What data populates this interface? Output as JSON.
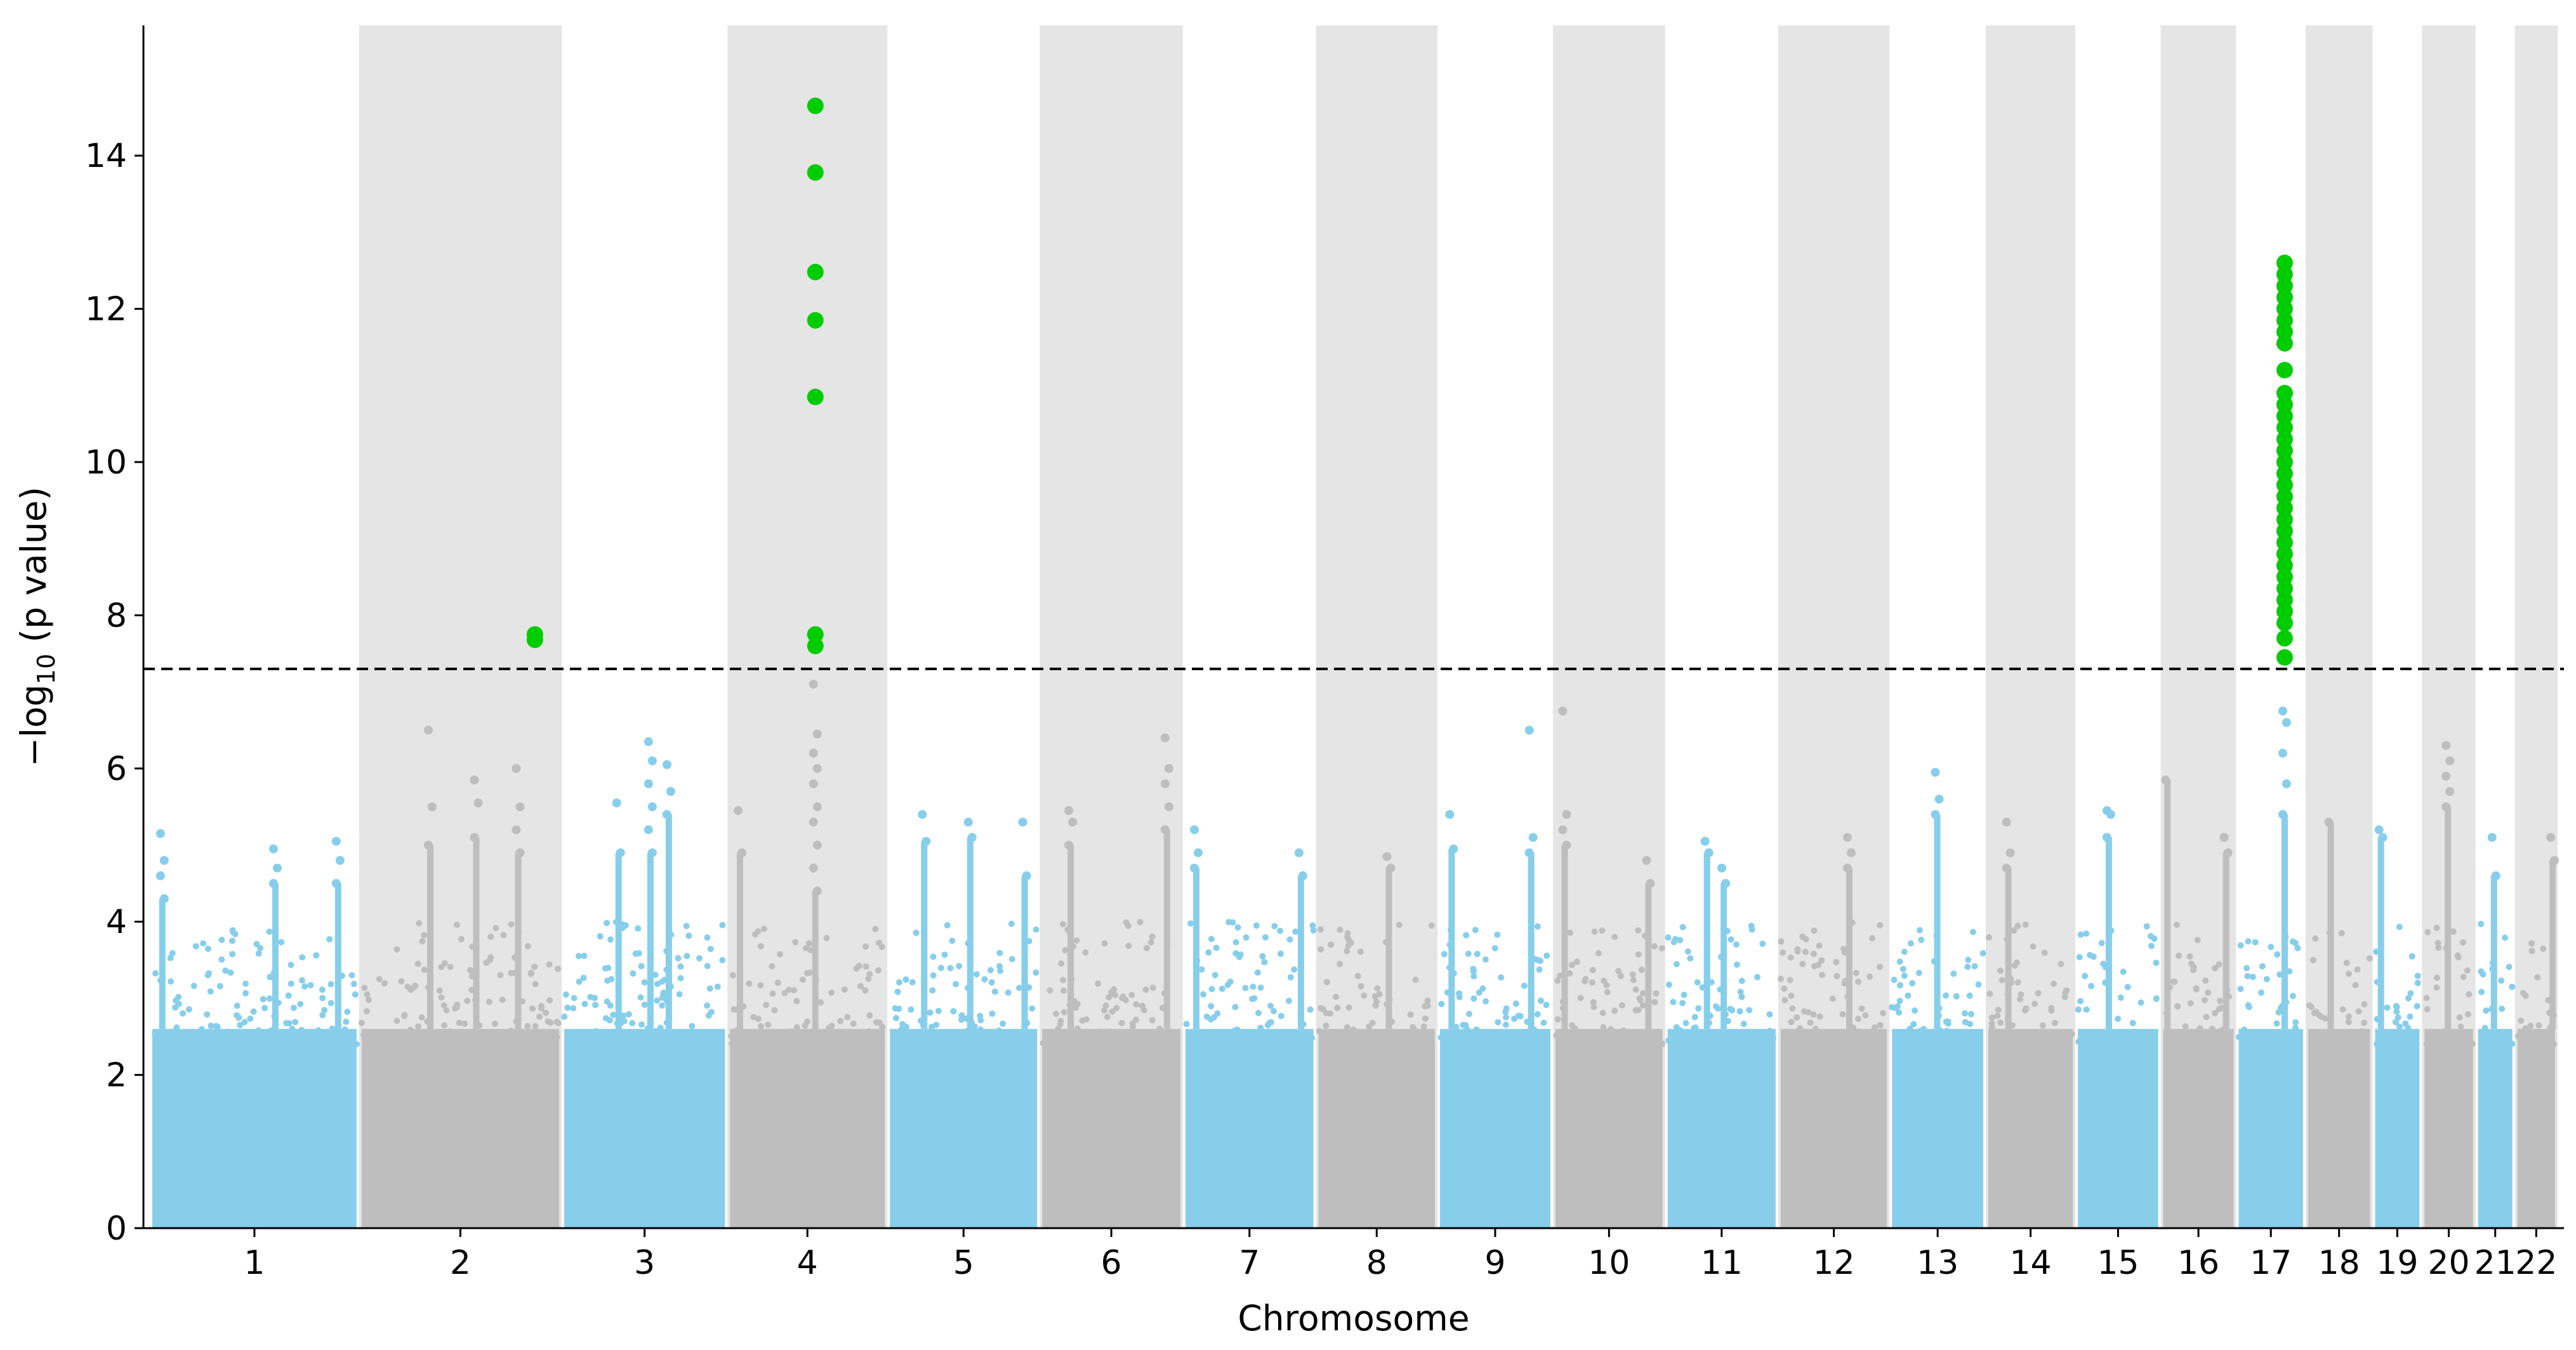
{
  "chart_data": {
    "type": "scatter",
    "title": "",
    "xlabel": "Chromosome",
    "ylabel_prefix": "−log",
    "ylabel_sub": "10",
    "ylabel_suffix": " (p value)",
    "ylim": [
      0,
      15.7
    ],
    "yticks": [
      0,
      2,
      4,
      6,
      8,
      10,
      12,
      14
    ],
    "ytick_labels": [
      "0",
      "2",
      "4",
      "6",
      "8",
      "10",
      "12",
      "14"
    ],
    "significance_threshold": 7.3,
    "colors": {
      "odd_chromosomes": "#87ceeb",
      "even_chromosomes": "#bebebe",
      "significant": "#00cc00",
      "shaded_band": "#e5e5e5",
      "threshold_line": "#000000"
    },
    "chromosomes": [
      {
        "label": "1",
        "start": 0,
        "end": 250
      },
      {
        "label": "2",
        "start": 250,
        "end": 492
      },
      {
        "label": "3",
        "start": 492,
        "end": 690
      },
      {
        "label": "4",
        "start": 690,
        "end": 881
      },
      {
        "label": "5",
        "start": 881,
        "end": 1063
      },
      {
        "label": "6",
        "start": 1063,
        "end": 1234
      },
      {
        "label": "7",
        "start": 1234,
        "end": 1393
      },
      {
        "label": "8",
        "start": 1393,
        "end": 1538
      },
      {
        "label": "9",
        "start": 1538,
        "end": 1676
      },
      {
        "label": "10",
        "start": 1676,
        "end": 1810
      },
      {
        "label": "11",
        "start": 1810,
        "end": 1945
      },
      {
        "label": "12",
        "start": 1945,
        "end": 2078
      },
      {
        "label": "13",
        "start": 2078,
        "end": 2193
      },
      {
        "label": "14",
        "start": 2193,
        "end": 2300
      },
      {
        "label": "15",
        "start": 2300,
        "end": 2402
      },
      {
        "label": "16",
        "start": 2402,
        "end": 2492
      },
      {
        "label": "17",
        "start": 2492,
        "end": 2575
      },
      {
        "label": "18",
        "start": 2575,
        "end": 2655
      },
      {
        "label": "19",
        "start": 2655,
        "end": 2714
      },
      {
        "label": "20",
        "start": 2714,
        "end": 2778
      },
      {
        "label": "21",
        "start": 2778,
        "end": 2825
      },
      {
        "label": "22",
        "start": 2825,
        "end": 2876
      }
    ],
    "peaks": [
      {
        "chromosome": "1",
        "x": 15,
        "values": [
          5.15,
          4.8,
          4.6,
          4.3
        ]
      },
      {
        "chromosome": "1",
        "x": 150,
        "values": [
          4.95,
          4.7,
          4.5
        ]
      },
      {
        "chromosome": "1",
        "x": 225,
        "values": [
          5.05,
          4.8,
          4.5
        ]
      },
      {
        "chromosome": "2",
        "x": 335,
        "values": [
          6.5,
          5.5,
          5.0
        ]
      },
      {
        "chromosome": "2",
        "x": 390,
        "values": [
          5.85,
          5.55,
          5.1
        ]
      },
      {
        "chromosome": "2",
        "x": 440,
        "values": [
          6.0,
          5.5,
          5.2,
          4.9
        ]
      },
      {
        "chromosome": "3",
        "x": 598,
        "values": [
          6.35,
          6.1,
          5.8,
          5.5,
          5.2,
          4.9
        ]
      },
      {
        "chromosome": "3",
        "x": 620,
        "values": [
          6.05,
          5.7,
          5.4
        ]
      },
      {
        "chromosome": "3",
        "x": 560,
        "values": [
          5.55,
          4.9
        ]
      },
      {
        "chromosome": "4",
        "x": 705,
        "values": [
          5.45,
          4.9
        ]
      },
      {
        "chromosome": "4",
        "x": 795,
        "values": [
          7.1,
          6.45,
          6.2,
          6.0,
          5.8,
          5.5,
          5.3,
          5.0,
          4.7,
          4.4
        ]
      },
      {
        "chromosome": "5",
        "x": 925,
        "values": [
          5.4,
          5.05
        ]
      },
      {
        "chromosome": "5",
        "x": 980,
        "values": [
          5.3,
          5.1
        ]
      },
      {
        "chromosome": "5",
        "x": 1045,
        "values": [
          5.3,
          4.6
        ]
      },
      {
        "chromosome": "6",
        "x": 1100,
        "values": [
          5.45,
          5.3,
          5.0
        ]
      },
      {
        "chromosome": "6",
        "x": 1215,
        "values": [
          6.4,
          6.0,
          5.8,
          5.5,
          5.2
        ]
      },
      {
        "chromosome": "7",
        "x": 1250,
        "values": [
          5.2,
          4.9,
          4.7
        ]
      },
      {
        "chromosome": "7",
        "x": 1375,
        "values": [
          4.9,
          4.6
        ]
      },
      {
        "chromosome": "8",
        "x": 1480,
        "values": [
          4.85,
          4.7
        ]
      },
      {
        "chromosome": "9",
        "x": 1555,
        "values": [
          5.4,
          4.95
        ]
      },
      {
        "chromosome": "9",
        "x": 1650,
        "values": [
          6.5,
          5.1,
          4.9
        ]
      },
      {
        "chromosome": "10",
        "x": 1690,
        "values": [
          6.75,
          5.4,
          5.2,
          5.0
        ]
      },
      {
        "chromosome": "10",
        "x": 1790,
        "values": [
          4.8,
          4.5
        ]
      },
      {
        "chromosome": "11",
        "x": 1860,
        "values": [
          5.05,
          4.9
        ]
      },
      {
        "chromosome": "11",
        "x": 1880,
        "values": [
          4.7,
          4.5
        ]
      },
      {
        "chromosome": "12",
        "x": 2030,
        "values": [
          5.1,
          4.9,
          4.7
        ]
      },
      {
        "chromosome": "13",
        "x": 2135,
        "values": [
          5.95,
          5.6,
          5.4
        ]
      },
      {
        "chromosome": "14",
        "x": 2220,
        "values": [
          5.3,
          4.9,
          4.7
        ]
      },
      {
        "chromosome": "15",
        "x": 2340,
        "values": [
          5.45,
          5.4,
          5.1
        ]
      },
      {
        "chromosome": "16",
        "x": 2410,
        "values": [
          5.85
        ]
      },
      {
        "chromosome": "16",
        "x": 2480,
        "values": [
          5.1,
          4.9
        ]
      },
      {
        "chromosome": "17",
        "x": 2550,
        "values": [
          6.75,
          6.6,
          6.2,
          5.8,
          5.4
        ]
      },
      {
        "chromosome": "18",
        "x": 2605,
        "values": [
          5.3
        ]
      },
      {
        "chromosome": "19",
        "x": 2665,
        "values": [
          5.2,
          5.1
        ]
      },
      {
        "chromosome": "20",
        "x": 2745,
        "values": [
          6.3,
          6.1,
          5.9,
          5.7,
          5.5
        ]
      },
      {
        "chromosome": "21",
        "x": 2800,
        "values": [
          5.1,
          4.6
        ]
      },
      {
        "chromosome": "22",
        "x": 2870,
        "values": [
          5.1,
          4.8
        ]
      }
    ],
    "significant_points": [
      {
        "chromosome": "2",
        "x": 460,
        "y": 7.75
      },
      {
        "chromosome": "2",
        "x": 460,
        "y": 7.68
      },
      {
        "chromosome": "4",
        "x": 795,
        "y": 14.65
      },
      {
        "chromosome": "4",
        "x": 795,
        "y": 13.78
      },
      {
        "chromosome": "4",
        "x": 795,
        "y": 12.48
      },
      {
        "chromosome": "4",
        "x": 795,
        "y": 11.85
      },
      {
        "chromosome": "4",
        "x": 795,
        "y": 10.85
      },
      {
        "chromosome": "4",
        "x": 795,
        "y": 7.75
      },
      {
        "chromosome": "4",
        "x": 795,
        "y": 7.6
      },
      {
        "chromosome": "17",
        "x": 2550,
        "y": 12.6
      },
      {
        "chromosome": "17",
        "x": 2550,
        "y": 12.45
      },
      {
        "chromosome": "17",
        "x": 2550,
        "y": 12.3
      },
      {
        "chromosome": "17",
        "x": 2550,
        "y": 12.15
      },
      {
        "chromosome": "17",
        "x": 2550,
        "y": 12.0
      },
      {
        "chromosome": "17",
        "x": 2550,
        "y": 11.85
      },
      {
        "chromosome": "17",
        "x": 2550,
        "y": 11.7
      },
      {
        "chromosome": "17",
        "x": 2550,
        "y": 11.55
      },
      {
        "chromosome": "17",
        "x": 2550,
        "y": 11.2
      },
      {
        "chromosome": "17",
        "x": 2550,
        "y": 10.9
      },
      {
        "chromosome": "17",
        "x": 2550,
        "y": 10.75
      },
      {
        "chromosome": "17",
        "x": 2550,
        "y": 10.6
      },
      {
        "chromosome": "17",
        "x": 2550,
        "y": 10.45
      },
      {
        "chromosome": "17",
        "x": 2550,
        "y": 10.3
      },
      {
        "chromosome": "17",
        "x": 2550,
        "y": 10.15
      },
      {
        "chromosome": "17",
        "x": 2550,
        "y": 10.0
      },
      {
        "chromosome": "17",
        "x": 2550,
        "y": 9.85
      },
      {
        "chromosome": "17",
        "x": 2550,
        "y": 9.7
      },
      {
        "chromosome": "17",
        "x": 2550,
        "y": 9.55
      },
      {
        "chromosome": "17",
        "x": 2550,
        "y": 9.4
      },
      {
        "chromosome": "17",
        "x": 2550,
        "y": 9.25
      },
      {
        "chromosome": "17",
        "x": 2550,
        "y": 9.1
      },
      {
        "chromosome": "17",
        "x": 2550,
        "y": 8.95
      },
      {
        "chromosome": "17",
        "x": 2550,
        "y": 8.8
      },
      {
        "chromosome": "17",
        "x": 2550,
        "y": 8.65
      },
      {
        "chromosome": "17",
        "x": 2550,
        "y": 8.5
      },
      {
        "chromosome": "17",
        "x": 2550,
        "y": 8.35
      },
      {
        "chromosome": "17",
        "x": 2550,
        "y": 8.2
      },
      {
        "chromosome": "17",
        "x": 2550,
        "y": 8.05
      },
      {
        "chromosome": "17",
        "x": 2550,
        "y": 7.9
      },
      {
        "chromosome": "17",
        "x": 2550,
        "y": 7.7
      },
      {
        "chromosome": "17",
        "x": 2550,
        "y": 7.45
      }
    ]
  }
}
